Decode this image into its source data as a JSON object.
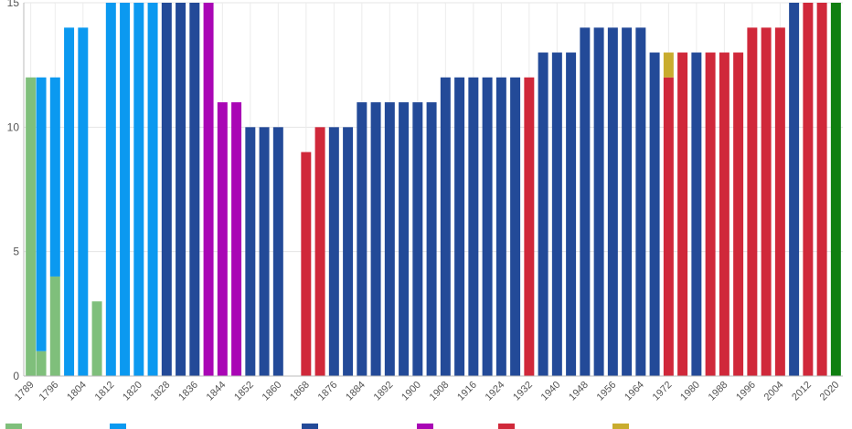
{
  "chart_data": {
    "type": "bar",
    "stacked": true,
    "title": "",
    "xlabel": "",
    "ylabel": "",
    "ylim": [
      0,
      15
    ],
    "yticks": [
      0,
      5,
      10,
      15
    ],
    "grid": true,
    "legend": "bottom",
    "x_tick_labels": [
      "1789",
      "1796",
      "1804",
      "1812",
      "1820",
      "1828",
      "1836",
      "1844",
      "1852",
      "1860",
      "1868",
      "1876",
      "1884",
      "1892",
      "1900",
      "1908",
      "1916",
      "1924",
      "1932",
      "1940",
      "1948",
      "1956",
      "1964",
      "1972",
      "1980",
      "1988",
      "1996",
      "2004",
      "2012",
      "2020"
    ],
    "categories": [
      "1789",
      "1792",
      "1796",
      "1800",
      "1804",
      "1808",
      "1812",
      "1816",
      "1820",
      "1824",
      "1828",
      "1832",
      "1836",
      "1840",
      "1844",
      "1848",
      "1852",
      "1856",
      "1860",
      "1864",
      "1868",
      "1872",
      "1876",
      "1880",
      "1884",
      "1888",
      "1892",
      "1896",
      "1900",
      "1904",
      "1908",
      "1912",
      "1916",
      "1920",
      "1924",
      "1928",
      "1932",
      "1936",
      "1940",
      "1944",
      "1948",
      "1952",
      "1956",
      "1960",
      "1964",
      "1968",
      "1972",
      "1976",
      "1980",
      "1984",
      "1988",
      "1992",
      "1996",
      "2000",
      "2004",
      "2008",
      "2012",
      "2016",
      "2020"
    ],
    "series": [
      {
        "color": "#7fbf7b",
        "values": [
          12,
          1,
          4,
          0,
          0,
          3,
          0,
          0,
          0,
          0,
          0,
          0,
          0,
          0,
          0,
          0,
          0,
          0,
          0,
          0,
          0,
          0,
          0,
          0,
          0,
          0,
          0,
          0,
          0,
          0,
          0,
          0,
          0,
          0,
          0,
          0,
          0,
          0,
          0,
          0,
          0,
          0,
          0,
          0,
          0,
          0,
          0,
          0,
          0,
          0,
          0,
          0,
          0,
          0,
          0,
          0,
          0,
          0,
          0
        ]
      },
      {
        "color": "#0b99f0",
        "values": [
          0,
          11,
          8,
          14,
          14,
          0,
          15,
          15,
          15,
          15,
          0,
          0,
          0,
          0,
          0,
          0,
          0,
          0,
          0,
          0,
          0,
          0,
          0,
          0,
          0,
          0,
          0,
          0,
          0,
          0,
          0,
          0,
          0,
          0,
          0,
          0,
          0,
          0,
          0,
          0,
          0,
          0,
          0,
          0,
          0,
          0,
          0,
          0,
          0,
          0,
          0,
          0,
          0,
          0,
          0,
          0,
          0,
          0,
          0
        ]
      },
      {
        "color": "#234a98",
        "values": [
          0,
          0,
          0,
          0,
          0,
          0,
          0,
          0,
          0,
          0,
          15,
          15,
          15,
          0,
          0,
          0,
          10,
          10,
          10,
          0,
          0,
          0,
          10,
          10,
          11,
          11,
          11,
          11,
          11,
          11,
          12,
          12,
          12,
          12,
          12,
          12,
          0,
          13,
          13,
          13,
          14,
          14,
          14,
          14,
          14,
          13,
          0,
          0,
          13,
          0,
          0,
          0,
          0,
          0,
          0,
          15,
          0,
          0,
          0
        ]
      },
      {
        "color": "#a906b5",
        "values": [
          0,
          0,
          0,
          0,
          0,
          0,
          0,
          0,
          0,
          0,
          0,
          0,
          0,
          15,
          11,
          11,
          0,
          0,
          0,
          0,
          0,
          0,
          0,
          0,
          0,
          0,
          0,
          0,
          0,
          0,
          0,
          0,
          0,
          0,
          0,
          0,
          0,
          0,
          0,
          0,
          0,
          0,
          0,
          0,
          0,
          0,
          0,
          0,
          0,
          0,
          0,
          0,
          0,
          0,
          0,
          0,
          0,
          0,
          0
        ]
      },
      {
        "color": "#d0283a",
        "values": [
          0,
          0,
          0,
          0,
          0,
          0,
          0,
          0,
          0,
          0,
          0,
          0,
          0,
          0,
          0,
          0,
          0,
          0,
          0,
          0,
          9,
          10,
          0,
          0,
          0,
          0,
          0,
          0,
          0,
          0,
          0,
          0,
          0,
          0,
          0,
          0,
          12,
          0,
          0,
          0,
          0,
          0,
          0,
          0,
          0,
          0,
          12,
          13,
          0,
          13,
          13,
          13,
          14,
          14,
          14,
          0,
          15,
          15,
          0
        ]
      },
      {
        "color": "#c9ac2e",
        "values": [
          0,
          0,
          0,
          0,
          0,
          0,
          0,
          0,
          0,
          0,
          0,
          0,
          0,
          0,
          0,
          0,
          0,
          0,
          0,
          0,
          0,
          0,
          0,
          0,
          0,
          0,
          0,
          0,
          0,
          0,
          0,
          0,
          0,
          0,
          0,
          0,
          0,
          0,
          0,
          0,
          0,
          0,
          0,
          0,
          0,
          0,
          1,
          0,
          0,
          0,
          0,
          0,
          0,
          0,
          0,
          0,
          0,
          0,
          0
        ]
      },
      {
        "color": "#0f7f10",
        "values": [
          0,
          0,
          0,
          0,
          0,
          0,
          0,
          0,
          0,
          0,
          0,
          0,
          0,
          0,
          0,
          0,
          0,
          0,
          0,
          0,
          0,
          0,
          0,
          0,
          0,
          0,
          0,
          0,
          0,
          0,
          0,
          0,
          0,
          0,
          0,
          0,
          0,
          0,
          0,
          0,
          0,
          0,
          0,
          0,
          0,
          0,
          0,
          0,
          0,
          0,
          0,
          0,
          0,
          0,
          0,
          0,
          0,
          0,
          15
        ]
      }
    ]
  }
}
